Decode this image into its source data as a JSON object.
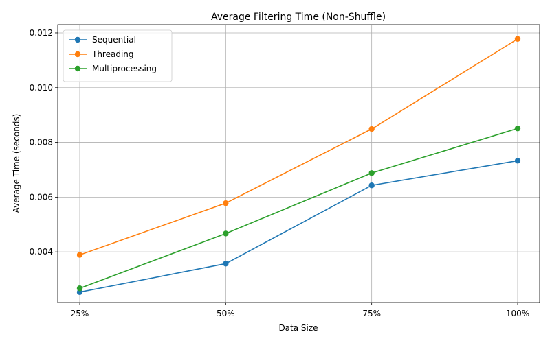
{
  "chart_data": {
    "type": "line",
    "title": "Average Filtering Time (Non-Shuffle)",
    "xlabel": "Data Size",
    "ylabel": "Average Time (seconds)",
    "categories": [
      "25%",
      "50%",
      "75%",
      "100%"
    ],
    "ylim": [
      0.00215,
      0.0123
    ],
    "yticks": [
      0.004,
      0.006,
      0.008,
      0.01,
      0.012
    ],
    "ytick_labels": [
      "0.004",
      "0.006",
      "0.008",
      "0.010",
      "0.012"
    ],
    "grid": true,
    "legend_position": "top-left",
    "series": [
      {
        "name": "Sequential",
        "color": "#1f77b4",
        "values": [
          0.00253,
          0.00357,
          0.00643,
          0.00733
        ]
      },
      {
        "name": "Threading",
        "color": "#ff7f0e",
        "values": [
          0.00389,
          0.00578,
          0.00849,
          0.01178
        ]
      },
      {
        "name": "Multiprocessing",
        "color": "#2ca02c",
        "values": [
          0.00267,
          0.00467,
          0.00688,
          0.00851
        ]
      }
    ]
  }
}
